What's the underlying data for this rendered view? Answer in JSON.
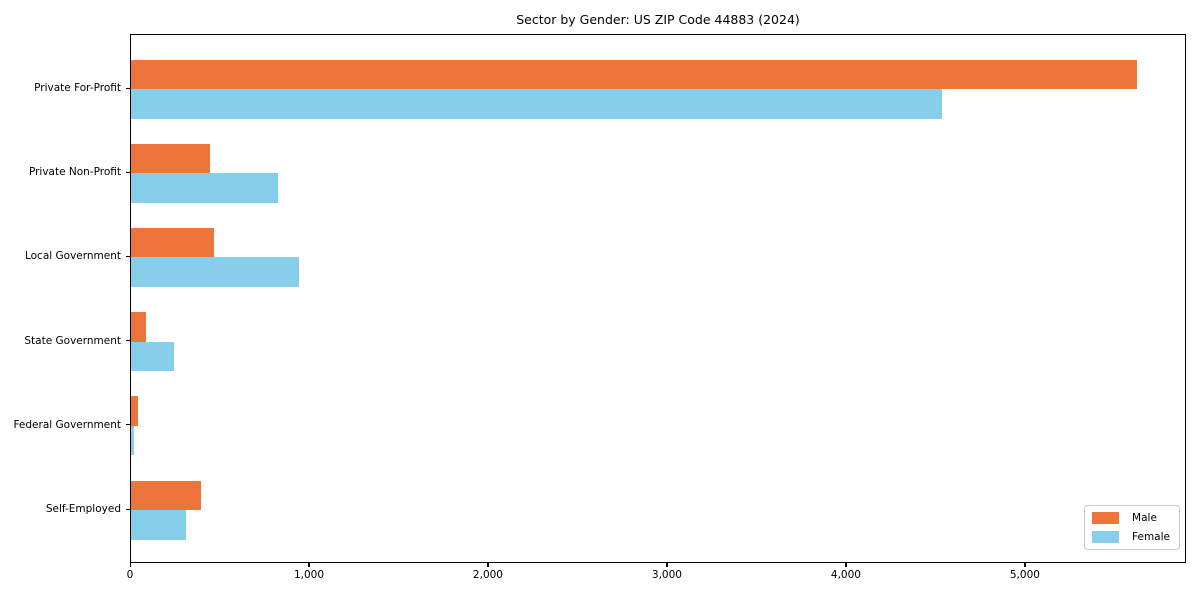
{
  "chart_data": {
    "type": "bar",
    "orientation": "horizontal",
    "title": "Sector by Gender: US ZIP Code 44883 (2024)",
    "categories": [
      "Private For-Profit",
      "Private Non-Profit",
      "Local Government",
      "State Government",
      "Federal Government",
      "Self-Employed"
    ],
    "series": [
      {
        "name": "Male",
        "color": "#ec753b",
        "values": [
          5620,
          440,
          465,
          85,
          40,
          390
        ]
      },
      {
        "name": "Female",
        "color": "#87ceeb",
        "values": [
          4530,
          820,
          940,
          240,
          15,
          305
        ]
      }
    ],
    "xlabel": "",
    "ylabel": "",
    "xlim": [
      0,
      5900
    ],
    "xticks": [
      {
        "value": 0,
        "label": "0"
      },
      {
        "value": 1000,
        "label": "1,000"
      },
      {
        "value": 2000,
        "label": "2,000"
      },
      {
        "value": 3000,
        "label": "3,000"
      },
      {
        "value": 4000,
        "label": "4,000"
      },
      {
        "value": 5000,
        "label": "5,000"
      }
    ],
    "grid": false,
    "legend_position": "lower right",
    "colors": {
      "male": "#ec753b",
      "female": "#87ceeb",
      "spine": "#000000",
      "legend_border": "#c9c9c9",
      "background": "#ffffff"
    }
  }
}
